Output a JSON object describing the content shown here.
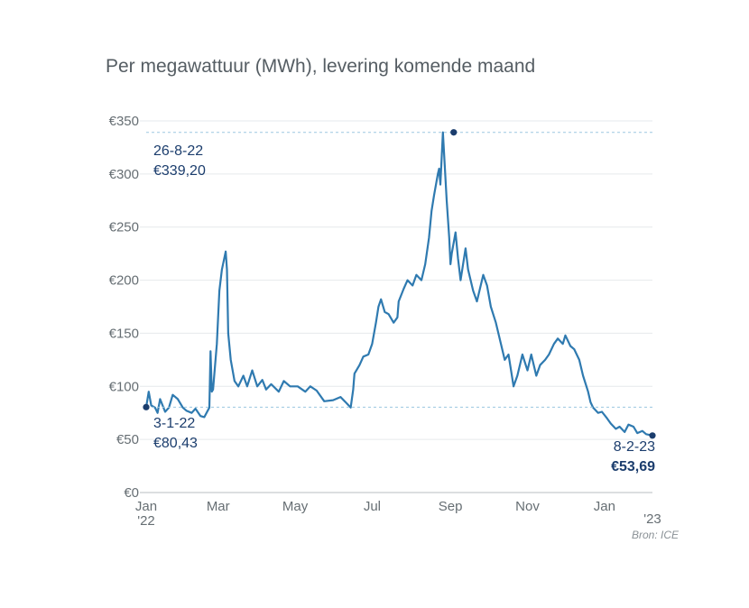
{
  "chart_data": {
    "type": "line",
    "title": "Per megawattuur (MWh), levering komende maand",
    "ylim": [
      0,
      350
    ],
    "y_ticks": [
      "€0",
      "€50",
      "€100",
      "€150",
      "€200",
      "€250",
      "€300",
      "€350"
    ],
    "x_ticks": [
      "Jan",
      "Mar",
      "May",
      "Jul",
      "Sep",
      "Nov",
      "Jan"
    ],
    "x_year_labels": [
      "'22",
      "'23"
    ],
    "grid": true,
    "series": [
      {
        "color": "#2f7ab0",
        "points": [
          [
            "2022-01-03",
            80.43
          ],
          [
            "2022-01-05",
            95
          ],
          [
            "2022-01-07",
            82
          ],
          [
            "2022-01-10",
            80
          ],
          [
            "2022-01-12",
            75
          ],
          [
            "2022-01-14",
            88
          ],
          [
            "2022-01-18",
            76
          ],
          [
            "2022-01-21",
            80
          ],
          [
            "2022-01-24",
            92
          ],
          [
            "2022-01-28",
            88
          ],
          [
            "2022-02-01",
            80
          ],
          [
            "2022-02-04",
            77
          ],
          [
            "2022-02-08",
            75
          ],
          [
            "2022-02-11",
            79
          ],
          [
            "2022-02-15",
            72
          ],
          [
            "2022-02-18",
            71
          ],
          [
            "2022-02-22",
            80
          ],
          [
            "2022-02-23",
            133
          ],
          [
            "2022-02-24",
            95
          ],
          [
            "2022-02-25",
            97
          ],
          [
            "2022-02-28",
            140
          ],
          [
            "2022-03-01",
            165
          ],
          [
            "2022-03-02",
            190
          ],
          [
            "2022-03-04",
            210
          ],
          [
            "2022-03-07",
            227
          ],
          [
            "2022-03-08",
            210
          ],
          [
            "2022-03-09",
            150
          ],
          [
            "2022-03-11",
            125
          ],
          [
            "2022-03-14",
            105
          ],
          [
            "2022-03-17",
            100
          ],
          [
            "2022-03-21",
            110
          ],
          [
            "2022-03-24",
            100
          ],
          [
            "2022-03-28",
            115
          ],
          [
            "2022-04-01",
            100
          ],
          [
            "2022-04-05",
            106
          ],
          [
            "2022-04-08",
            97
          ],
          [
            "2022-04-12",
            102
          ],
          [
            "2022-04-18",
            95
          ],
          [
            "2022-04-22",
            105
          ],
          [
            "2022-04-27",
            100
          ],
          [
            "2022-05-03",
            100
          ],
          [
            "2022-05-09",
            95
          ],
          [
            "2022-05-13",
            100
          ],
          [
            "2022-05-18",
            96
          ],
          [
            "2022-05-24",
            86
          ],
          [
            "2022-05-31",
            87
          ],
          [
            "2022-06-06",
            90
          ],
          [
            "2022-06-10",
            85
          ],
          [
            "2022-06-14",
            80
          ],
          [
            "2022-06-16",
            97
          ],
          [
            "2022-06-17",
            112
          ],
          [
            "2022-06-21",
            120
          ],
          [
            "2022-06-24",
            128
          ],
          [
            "2022-06-28",
            130
          ],
          [
            "2022-07-01",
            140
          ],
          [
            "2022-07-04",
            160
          ],
          [
            "2022-07-06",
            175
          ],
          [
            "2022-07-08",
            182
          ],
          [
            "2022-07-11",
            170
          ],
          [
            "2022-07-14",
            168
          ],
          [
            "2022-07-18",
            160
          ],
          [
            "2022-07-21",
            165
          ],
          [
            "2022-07-22",
            180
          ],
          [
            "2022-07-26",
            192
          ],
          [
            "2022-07-29",
            200
          ],
          [
            "2022-08-02",
            195
          ],
          [
            "2022-08-05",
            205
          ],
          [
            "2022-08-09",
            200
          ],
          [
            "2022-08-12",
            215
          ],
          [
            "2022-08-15",
            240
          ],
          [
            "2022-08-17",
            265
          ],
          [
            "2022-08-19",
            280
          ],
          [
            "2022-08-22",
            300
          ],
          [
            "2022-08-23",
            305
          ],
          [
            "2022-08-24",
            290
          ],
          [
            "2022-08-26",
            339.2
          ],
          [
            "2022-08-29",
            275
          ],
          [
            "2022-08-31",
            240
          ],
          [
            "2022-09-01",
            215
          ],
          [
            "2022-09-02",
            225
          ],
          [
            "2022-09-05",
            245
          ],
          [
            "2022-09-07",
            220
          ],
          [
            "2022-09-09",
            200
          ],
          [
            "2022-09-13",
            230
          ],
          [
            "2022-09-15",
            210
          ],
          [
            "2022-09-19",
            190
          ],
          [
            "2022-09-22",
            180
          ],
          [
            "2022-09-27",
            205
          ],
          [
            "2022-09-30",
            195
          ],
          [
            "2022-10-03",
            175
          ],
          [
            "2022-10-07",
            160
          ],
          [
            "2022-10-11",
            140
          ],
          [
            "2022-10-14",
            125
          ],
          [
            "2022-10-17",
            130
          ],
          [
            "2022-10-19",
            115
          ],
          [
            "2022-10-21",
            100
          ],
          [
            "2022-10-24",
            110
          ],
          [
            "2022-10-28",
            130
          ],
          [
            "2022-11-01",
            115
          ],
          [
            "2022-11-04",
            130
          ],
          [
            "2022-11-08",
            110
          ],
          [
            "2022-11-11",
            120
          ],
          [
            "2022-11-15",
            125
          ],
          [
            "2022-11-18",
            130
          ],
          [
            "2022-11-22",
            140
          ],
          [
            "2022-11-25",
            145
          ],
          [
            "2022-11-29",
            140
          ],
          [
            "2022-12-01",
            148
          ],
          [
            "2022-12-05",
            138
          ],
          [
            "2022-12-08",
            135
          ],
          [
            "2022-12-12",
            125
          ],
          [
            "2022-12-15",
            110
          ],
          [
            "2022-12-19",
            95
          ],
          [
            "2022-12-21",
            85
          ],
          [
            "2022-12-23",
            80
          ],
          [
            "2022-12-27",
            75
          ],
          [
            "2022-12-30",
            76
          ],
          [
            "2023-01-03",
            70
          ],
          [
            "2023-01-06",
            65
          ],
          [
            "2023-01-10",
            60
          ],
          [
            "2023-01-13",
            62
          ],
          [
            "2023-01-17",
            57
          ],
          [
            "2023-01-20",
            64
          ],
          [
            "2023-01-24",
            62
          ],
          [
            "2023-01-27",
            56
          ],
          [
            "2023-01-31",
            58
          ],
          [
            "2023-02-03",
            55
          ],
          [
            "2023-02-08",
            53.69
          ]
        ]
      }
    ],
    "annotations": [
      {
        "date_label": "26-8-22",
        "value_label": "€339,20",
        "x": "2022-08-26",
        "y": 339.2
      },
      {
        "date_label": "3-1-22",
        "value_label": "€80,43",
        "x": "2022-01-03",
        "y": 80.43
      },
      {
        "date_label": "8-2-23",
        "value_label": "€53,69",
        "x": "2023-02-08",
        "y": 53.69
      }
    ],
    "source": "Bron: ICE"
  },
  "colors": {
    "line": "#2f7ab0",
    "annotation": "#1b3d6d",
    "grid": "#e6e9ec",
    "dashed": "#9bc7e0"
  }
}
